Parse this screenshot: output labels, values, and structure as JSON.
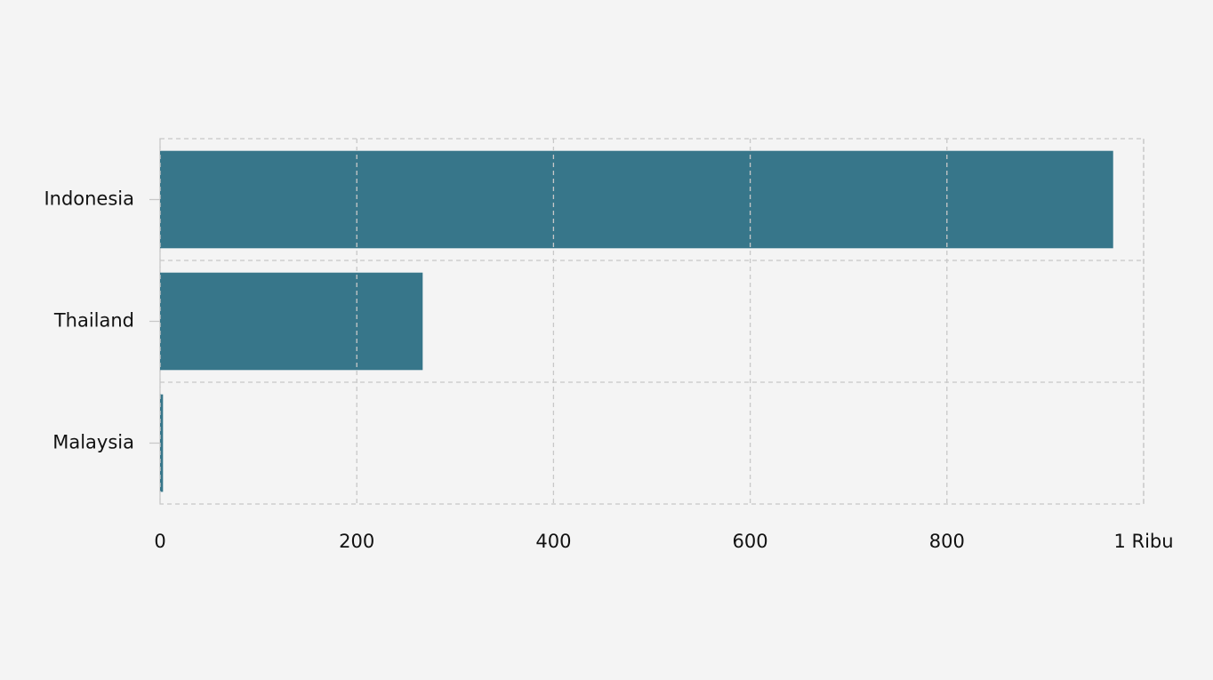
{
  "chart_data": {
    "type": "bar",
    "orientation": "horizontal",
    "categories": [
      "Indonesia",
      "Thailand",
      "Malaysia"
    ],
    "values": [
      969,
      267,
      3
    ],
    "color": "#317286",
    "xlim": [
      0,
      1000
    ],
    "xticks": [
      0,
      200,
      400,
      600,
      800,
      {
        "value": 1000,
        "label": "1 Ribu"
      }
    ],
    "grid": true
  }
}
